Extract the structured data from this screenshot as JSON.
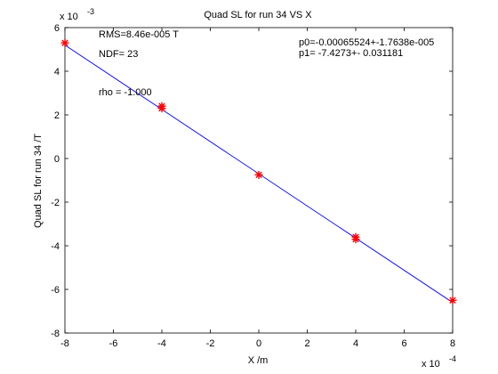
{
  "chart_data": {
    "type": "scatter",
    "title": "Quad SL for run 34 VS X",
    "xlabel": "X /m",
    "ylabel": "Quad SL for run 34 /T",
    "x_multiplier": "x 10",
    "x_exponent": "-4",
    "y_multiplier": "x 10",
    "y_exponent": "-3",
    "xlim": [
      -8,
      8
    ],
    "ylim": [
      -8,
      6
    ],
    "x_ticks": [
      -8,
      -6,
      -4,
      -2,
      0,
      2,
      4,
      6,
      8
    ],
    "y_ticks": [
      -8,
      -6,
      -4,
      -2,
      0,
      2,
      4,
      6
    ],
    "grid": false,
    "points": [
      {
        "x": -8,
        "y": 5.3
      },
      {
        "x": -4,
        "y": 2.4
      },
      {
        "x": -4,
        "y": 2.3
      },
      {
        "x": 0,
        "y": -0.75
      },
      {
        "x": 4,
        "y": -3.6
      },
      {
        "x": 4,
        "y": -3.7
      },
      {
        "x": 8,
        "y": -6.5
      }
    ],
    "fit_line": {
      "x": [
        -8,
        8
      ],
      "y": [
        5.2,
        -6.6
      ]
    },
    "point_color": "#ff0000",
    "line_color": "#0000ff",
    "annotations": {
      "rms": "RMS=8.46e-005 T",
      "ndf": "NDF=   23",
      "rho": "rho     = -1.000",
      "p0": "p0=-0.00065524+-1.7638e-005",
      "p1": "p1=  -7.4273+- 0.031181"
    }
  }
}
